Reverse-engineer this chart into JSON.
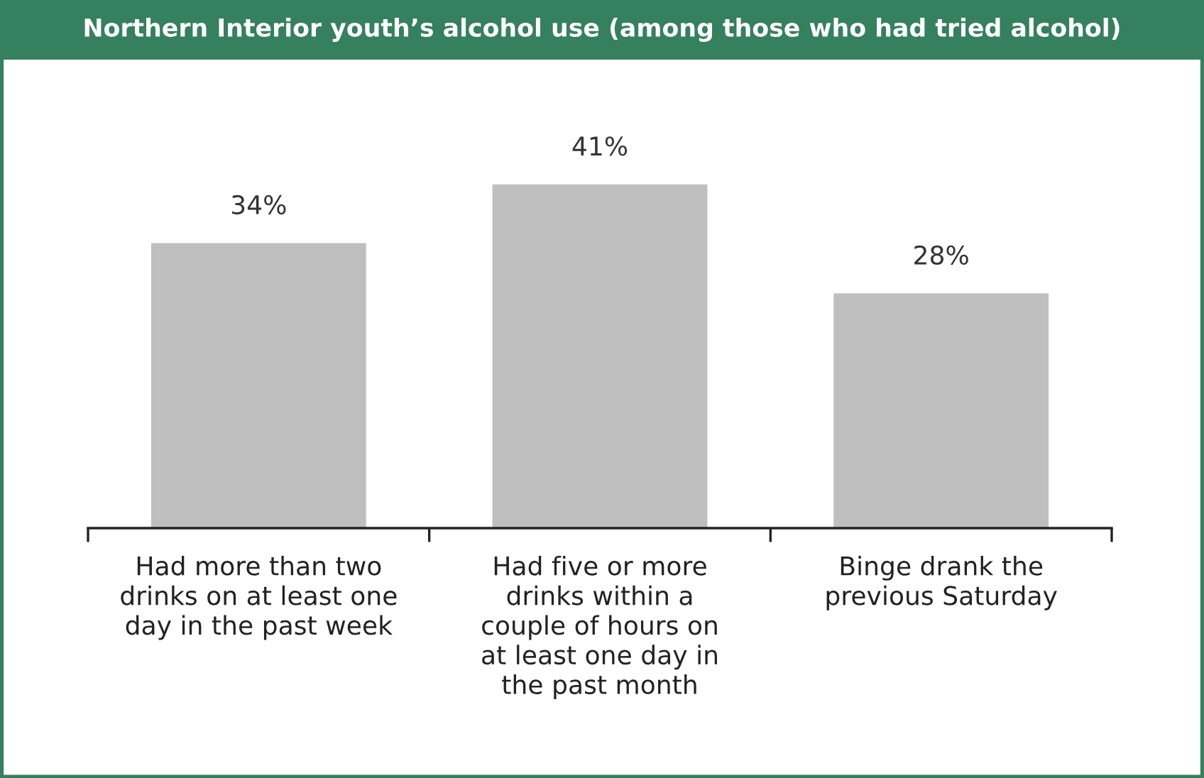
{
  "chart_data": {
    "type": "bar",
    "title": "Northern Interior youth’s alcohol use (among those who had tried alcohol)",
    "categories": [
      "Had more than two\ndrinks on at least one\nday in the past week",
      "Had five or more\ndrinks within a\ncouple of hours on\nat least one day in\nthe past month",
      "Binge drank the\nprevious Saturday"
    ],
    "values": [
      34,
      41,
      28
    ],
    "color": "#bfbfbf",
    "data_labels": true,
    "value_labels": [
      "34%",
      "41%",
      "28%"
    ],
    "grid": false,
    "legend": false
  }
}
